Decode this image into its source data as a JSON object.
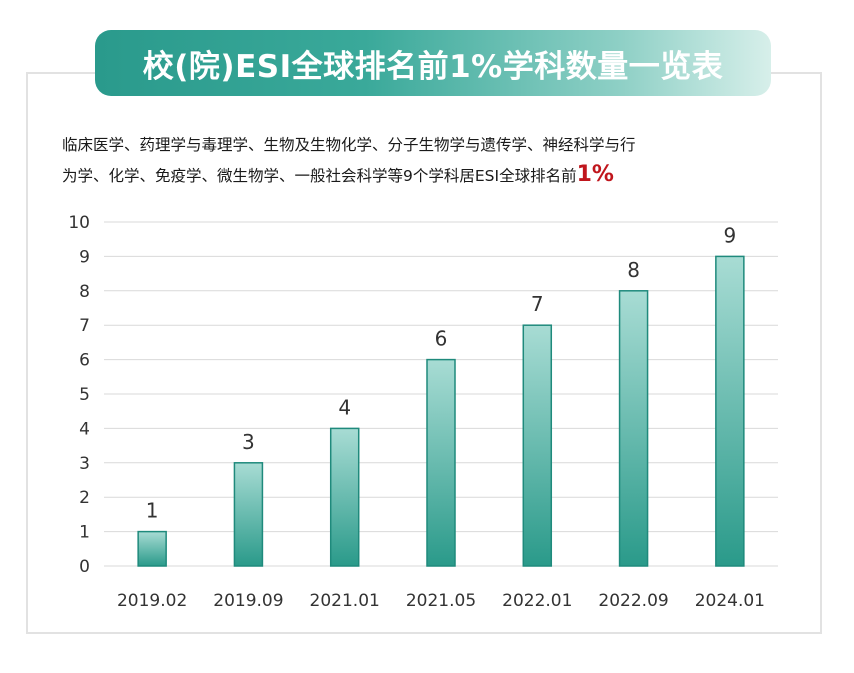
{
  "header": {
    "title": "校(院)ESI全球排名前1%学科数量一览表"
  },
  "description": {
    "line1": "临床医学、药理学与毒理学、生物及生物化学、分子生物学与遗传学、神经科学与行",
    "line2": "为学、化学、免疫学、微生物学、一般社会科学等9个学科居ESI全球排名前",
    "highlight": "1%"
  },
  "colors": {
    "bar_top": "#a8dcd4",
    "bar_bottom": "#2a9a8a",
    "bar_stroke": "#1f8a7c",
    "grid": "#d9d9d9",
    "highlight": "#c0161d"
  },
  "chart_data": {
    "type": "bar",
    "title": "",
    "xlabel": "",
    "ylabel": "",
    "categories": [
      "2019.02",
      "2019.09",
      "2021.01",
      "2021.05",
      "2022.01",
      "2022.09",
      "2024.01"
    ],
    "values": [
      1,
      3,
      4,
      6,
      7,
      8,
      9
    ],
    "ylim": [
      0,
      10
    ],
    "yticks": [
      0,
      1,
      2,
      3,
      4,
      5,
      6,
      7,
      8,
      9,
      10
    ],
    "grid": true,
    "legend": "none",
    "data_labels": true
  }
}
